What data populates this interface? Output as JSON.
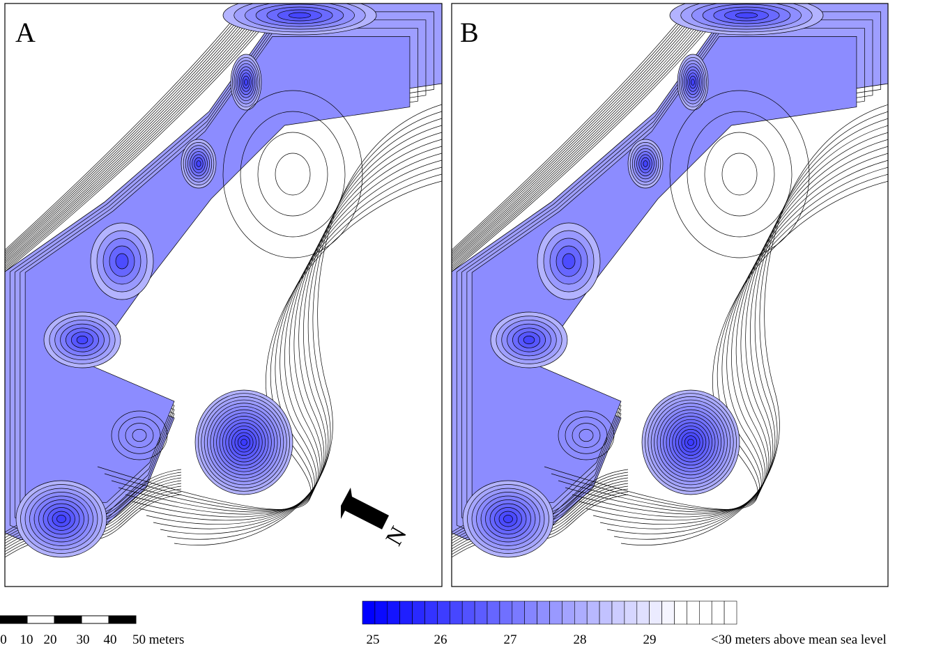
{
  "panels": [
    {
      "label": "A"
    },
    {
      "label": "B"
    }
  ],
  "north_arrow": {
    "label": "N"
  },
  "scale_bar": {
    "labels": [
      "0",
      "10",
      "20",
      "30",
      "40",
      "50 meters"
    ]
  },
  "color_legend": {
    "labels": [
      "25",
      "26",
      "27",
      "28",
      "29",
      "<30 meters above mean sea level"
    ]
  }
}
